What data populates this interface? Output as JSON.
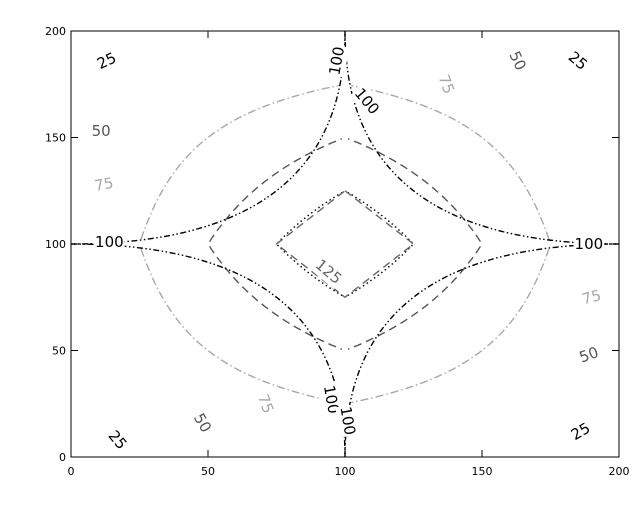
{
  "chart_data": {
    "type": "contour",
    "title": "",
    "xlabel": "",
    "ylabel": "",
    "xlim": [
      0,
      200
    ],
    "ylim": [
      0,
      200
    ],
    "x_ticks": [
      0,
      50,
      100,
      150,
      200
    ],
    "y_ticks": [
      0,
      50,
      100,
      150,
      200
    ],
    "grid": false,
    "legend": "none",
    "surface": "f(x,y) = 100 + (|x-100| - 100)(|y-100| - 100)/100 (fitted from the labelled levels; exact 100 along x=100 and y=100)",
    "levels": [
      {
        "value": 25,
        "label": "25",
        "color": "#000000",
        "style": "dotted"
      },
      {
        "value": 50,
        "label": "50",
        "color": "#555555",
        "style": "dashed"
      },
      {
        "value": 75,
        "label": "75",
        "color": "#a8a8a8",
        "style": "dash-dot"
      },
      {
        "value": 100,
        "label": "100",
        "color": "#000000",
        "style": "dash-dot-dot"
      },
      {
        "value": 125,
        "label": "125",
        "color": "#666666",
        "style": "dashed"
      }
    ],
    "labels": [
      {
        "text": "25",
        "x": 13,
        "y": 186,
        "color": "#000000",
        "angle": -25
      },
      {
        "text": "25",
        "x": 185,
        "y": 186,
        "color": "#000000",
        "angle": 40
      },
      {
        "text": "25",
        "x": 17,
        "y": 8,
        "color": "#000000",
        "angle": 50
      },
      {
        "text": "25",
        "x": 186,
        "y": 12,
        "color": "#000000",
        "angle": -30
      },
      {
        "text": "50",
        "x": 11,
        "y": 153,
        "color": "#555555",
        "angle": 0
      },
      {
        "text": "50",
        "x": 163,
        "y": 186,
        "color": "#555555",
        "angle": 65
      },
      {
        "text": "50",
        "x": 48,
        "y": 16,
        "color": "#555555",
        "angle": 60
      },
      {
        "text": "50",
        "x": 189,
        "y": 48,
        "color": "#555555",
        "angle": -20
      },
      {
        "text": "75",
        "x": 12,
        "y": 128,
        "color": "#a8a8a8",
        "angle": -10
      },
      {
        "text": "75",
        "x": 137,
        "y": 175,
        "color": "#a8a8a8",
        "angle": 70
      },
      {
        "text": "75",
        "x": 71,
        "y": 25,
        "color": "#a8a8a8",
        "angle": 70
      },
      {
        "text": "75",
        "x": 190,
        "y": 75,
        "color": "#a8a8a8",
        "angle": -15
      },
      {
        "text": "100",
        "x": 97,
        "y": 186,
        "color": "#000000",
        "angle": -80
      },
      {
        "text": "100",
        "x": 108,
        "y": 167,
        "color": "#000000",
        "angle": 50
      },
      {
        "text": "100",
        "x": 14,
        "y": 101,
        "color": "#000000",
        "angle": 0
      },
      {
        "text": "100",
        "x": 189,
        "y": 100,
        "color": "#000000",
        "angle": 0
      },
      {
        "text": "100",
        "x": 95,
        "y": 27,
        "color": "#000000",
        "angle": 80
      },
      {
        "text": "100",
        "x": 101,
        "y": 17,
        "color": "#000000",
        "angle": 80
      },
      {
        "text": "125",
        "x": 94,
        "y": 87,
        "color": "#666666",
        "angle": 40
      }
    ]
  }
}
